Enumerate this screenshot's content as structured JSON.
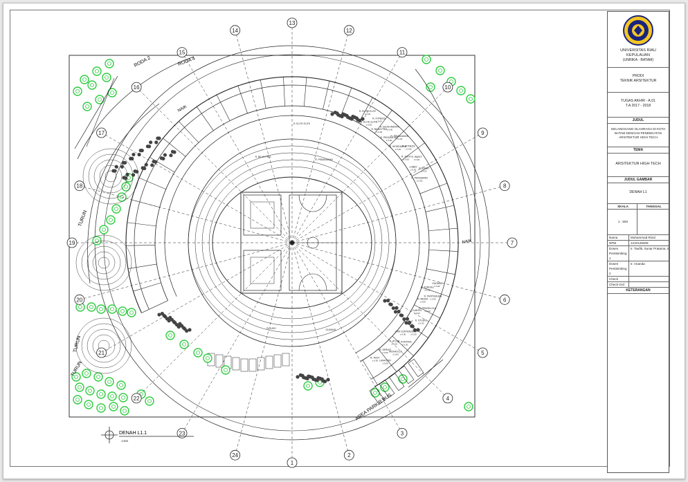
{
  "drawing": {
    "grid_labels": [
      "1",
      "2",
      "3",
      "4",
      "5",
      "6",
      "7",
      "8",
      "9",
      "10",
      "11",
      "12",
      "13",
      "14",
      "15",
      "16",
      "17",
      "18",
      "19",
      "20",
      "21",
      "22",
      "23",
      "24"
    ],
    "road_labels": {
      "roda2": "RODA 2",
      "roda4": "RODA 4",
      "turun_1": "TURUN",
      "turun_2": "TURUN",
      "turun_3": "TURUN",
      "naik_1": "NAIK",
      "naik_2": "NAIK",
      "parkir_bus": "AREA PARKIR BUS"
    },
    "room_labels": [
      "R. ELITE ELITE",
      "R. ELITE ELITE",
      "R. FITNESS",
      "R. BILAS PRIA",
      "R. BILAS WANITA",
      "R. PENGANTAR",
      "R. PEMANASAN",
      "R. KESEHATAN",
      "R. FITNESS",
      "R. JUDO",
      "R. WASIT",
      "LOBBY",
      "GUDANG",
      "R. PERSIAPAN",
      "GUDANG",
      "R. TUNGGU",
      "R. PERTEMUAN",
      "R. MEDIA",
      "R. PENGELOLA",
      "KANTIN",
      "R. STUDIO",
      "R. IT",
      "LOBBY",
      "ATM CENTER",
      "R. KONTROL",
      "R. ATLET",
      "MUSHOLLA",
      "R. SERVIS",
      "LAVATORY",
      "R. TIKET"
    ],
    "level_text": "± 0.00",
    "plan_title": "DENAH L1.1",
    "plan_scale": "1:500"
  },
  "title_block": {
    "university": "UNIVERSITAS RIAU KEPULAUAN",
    "city": "(UNRIKA - BATAM)",
    "prodi_label": "PRODI",
    "prodi": "TEKNIK ARSITEKTUR",
    "tugas": "TUGAS AKHIR - A.01",
    "tahun": "T.A 2017 - 2018",
    "judul_label": "JUDUL",
    "judul": "GELANGGANG OLAHRAGA DI KOTA BATAM DENGAN PENDEKATAN ARSITEKTUR HIGH TECH",
    "tema_label": "TEMA",
    "tema": "ARSITEKTUR HIGH TECH",
    "gambar_label": "JUDUL GAMBAR",
    "gambar": "DENAH L1",
    "skala_label": "SKALA",
    "tanggal_label": "TANGGAL",
    "skala": "1 : 500",
    "tanggal": "",
    "rows": [
      {
        "k": "Nama",
        "v": "Muhammad Rizal"
      },
      {
        "k": "NPM",
        "v": "1210128309"
      },
      {
        "k": "Dosen Pembimbing 1",
        "v": "Ir. Taufik, Sunar Pratama, MT"
      },
      {
        "k": "Dosen Pembimbing 2",
        "v": "Ir. Ananda"
      },
      {
        "k": "Check",
        "v": ""
      },
      {
        "k": "Check Grd",
        "v": ""
      }
    ],
    "keterangan": "KETERANGAN"
  },
  "colors": {
    "line": "#222222",
    "tree": "#2ecc40",
    "paper": "#ffffff"
  }
}
